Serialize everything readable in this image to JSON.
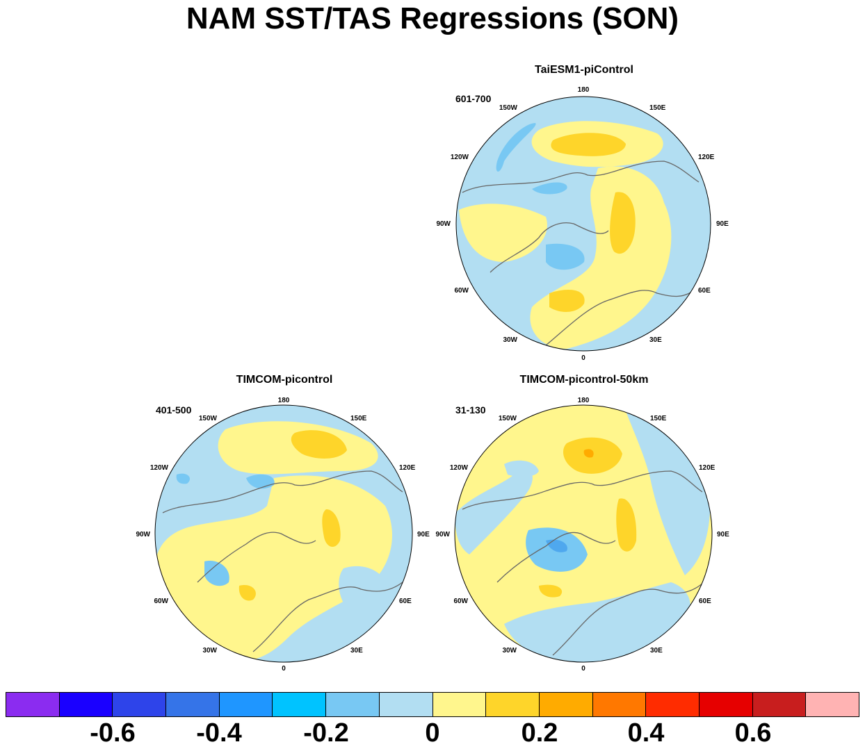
{
  "title": "NAM SST/TAS Regressions (SON)",
  "lon_labels": [
    "180",
    "150E",
    "120E",
    "90E",
    "60E",
    "30E",
    "0",
    "30W",
    "60W",
    "90W",
    "120W",
    "150W"
  ],
  "panels": [
    {
      "id": "taiesm1",
      "title": "TaiESM1-piControl",
      "years": "601-700"
    },
    {
      "id": "timcom",
      "title": "TIMCOM-picontrol",
      "years": "401-500"
    },
    {
      "id": "timcom50",
      "title": "TIMCOM-picontrol-50km",
      "years": "31-130"
    }
  ],
  "colorbar": {
    "colors": [
      "#8b2cf0",
      "#1a00ff",
      "#2e44ea",
      "#3574e8",
      "#1f96ff",
      "#00c3ff",
      "#78c8f3",
      "#b2def2",
      "#fff68d",
      "#fed52a",
      "#ffab00",
      "#ff7800",
      "#ff2c00",
      "#e60000",
      "#c81e1e",
      "#ffb3b3"
    ],
    "labels": [
      "-0.6",
      "-0.4",
      "-0.2",
      "0",
      "0.2",
      "0.4",
      "0.6"
    ]
  },
  "legend_colors": {
    "light_blue": "#b2def2",
    "mid_blue": "#78c8f3",
    "blue": "#4fa8ee",
    "light_yellow": "#fff68d",
    "gold": "#fed52a",
    "orange": "#ffab00",
    "coast": "#666666"
  }
}
